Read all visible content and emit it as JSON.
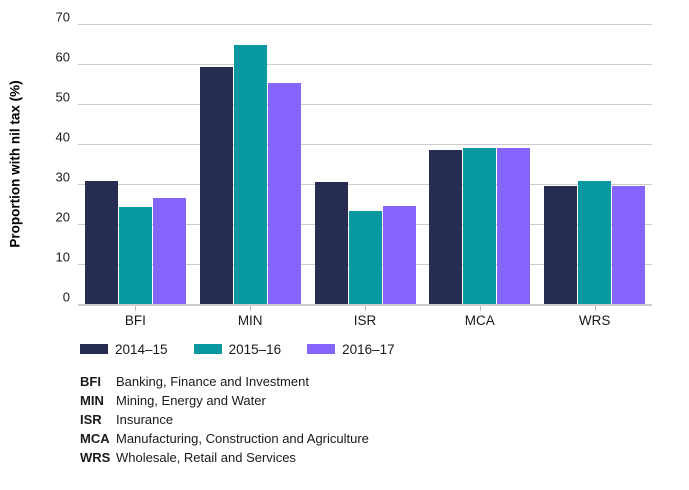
{
  "chart_data": {
    "type": "bar",
    "title": "",
    "xlabel": "",
    "ylabel": "Proportion with nil tax (%)",
    "ylim": [
      0,
      70
    ],
    "ytick_step": 10,
    "grid": true,
    "legend_position": "bottom",
    "categories": [
      "BFI",
      "MIN",
      "ISR",
      "MCA",
      "WRS"
    ],
    "series": [
      {
        "name": "2014–15",
        "color": "#262c52",
        "values": [
          30.8,
          59.2,
          30.4,
          38.5,
          29.4
        ]
      },
      {
        "name": "2015–16",
        "color": "#0899a0",
        "values": [
          24.3,
          64.8,
          23.3,
          38.9,
          30.8
        ]
      },
      {
        "name": "2016–17",
        "color": "#8565fc",
        "values": [
          26.5,
          55.3,
          24.6,
          39.1,
          29.4
        ]
      }
    ],
    "gridline_color": "#cccccc",
    "axis_text_color": "#1a1a1a"
  },
  "footnotes": {
    "items": [
      {
        "abbr": "BFI",
        "label": "Banking, Finance and Investment"
      },
      {
        "abbr": "MIN",
        "label": "Mining, Energy and Water"
      },
      {
        "abbr": "ISR",
        "label": "Insurance"
      },
      {
        "abbr": "MCA",
        "label": "Manufacturing, Construction and Agriculture"
      },
      {
        "abbr": "WRS",
        "label": "Wholesale, Retail and Services"
      }
    ]
  }
}
